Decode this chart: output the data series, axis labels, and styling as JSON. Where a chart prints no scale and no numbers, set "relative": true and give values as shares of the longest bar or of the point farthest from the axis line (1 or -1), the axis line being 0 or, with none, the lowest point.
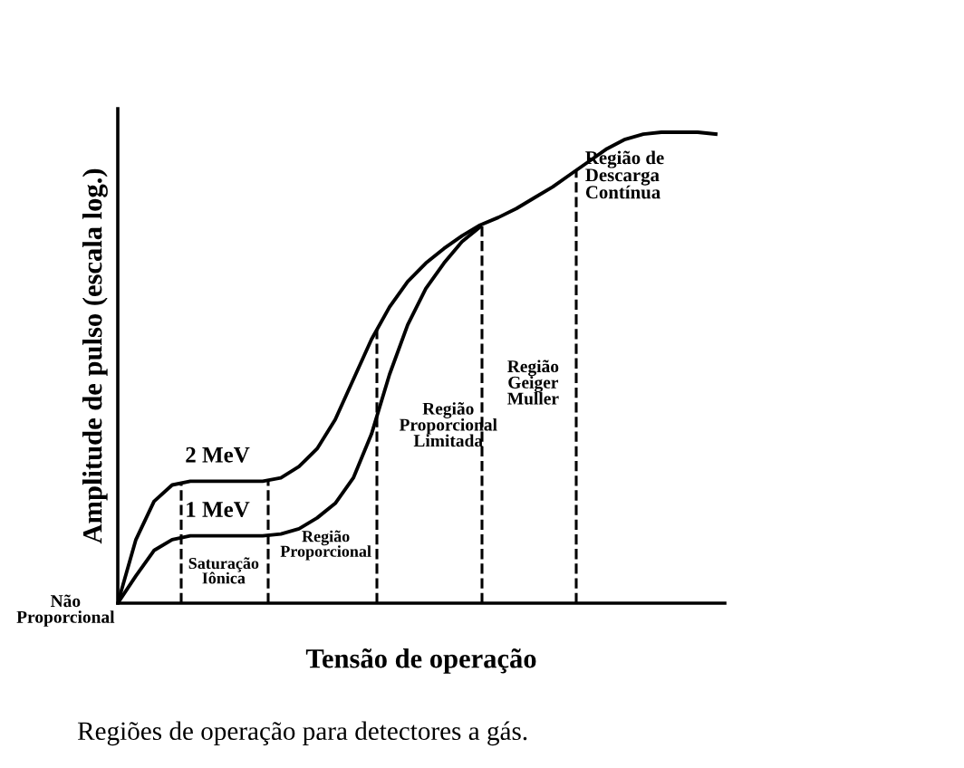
{
  "chart_data": {
    "type": "line",
    "relative": true,
    "xlabel": "Tensão de operação",
    "ylabel": "Amplitude de pulso (escala log.)",
    "categories": [
      null,
      null,
      null,
      null,
      null,
      null,
      null,
      null,
      null,
      null,
      null,
      null,
      null,
      null,
      null,
      null,
      null,
      null,
      null,
      null,
      null,
      null,
      null,
      null,
      null,
      null,
      null,
      null,
      null,
      null,
      null,
      null,
      null,
      null
    ],
    "series": [
      {
        "name": "2 MeV",
        "color": "#000000",
        "values": [
          0,
          0.135,
          0.216,
          0.251,
          0.259,
          0.259,
          0.259,
          0.259,
          0.259,
          0.266,
          0.29,
          0.328,
          0.39,
          0.475,
          0.56,
          0.629,
          0.683,
          0.722,
          0.753,
          0.78,
          0.803,
          0.819,
          0.838,
          0.861,
          0.884,
          0.911,
          0.938,
          0.965,
          0.985,
          0.996,
          1,
          1,
          1,
          0.996
        ]
      },
      {
        "name": "1 MeV",
        "color": "#000000",
        "values": [
          0,
          0.058,
          0.112,
          0.135,
          0.143,
          0.143,
          0.143,
          0.143,
          0.143,
          0.147,
          0.158,
          0.181,
          0.212,
          0.266,
          0.359,
          0.486,
          0.591,
          0.668,
          0.722,
          0.768,
          0.799,
          null,
          null,
          null,
          null,
          null,
          null,
          null,
          null,
          null,
          null,
          null,
          null,
          null
        ]
      }
    ],
    "annotations": [
      "Não\nProporcional",
      "Saturação\nIônica",
      "Região\nProporcional",
      "Região\nProporcional\nLimitada",
      "Região\nGeiger\nMuller",
      "Região de\nDescarga\nContínua",
      "Regiões de operação para detectores a gás."
    ],
    "legend": false,
    "marker": "none",
    "line_style": "solid"
  }
}
